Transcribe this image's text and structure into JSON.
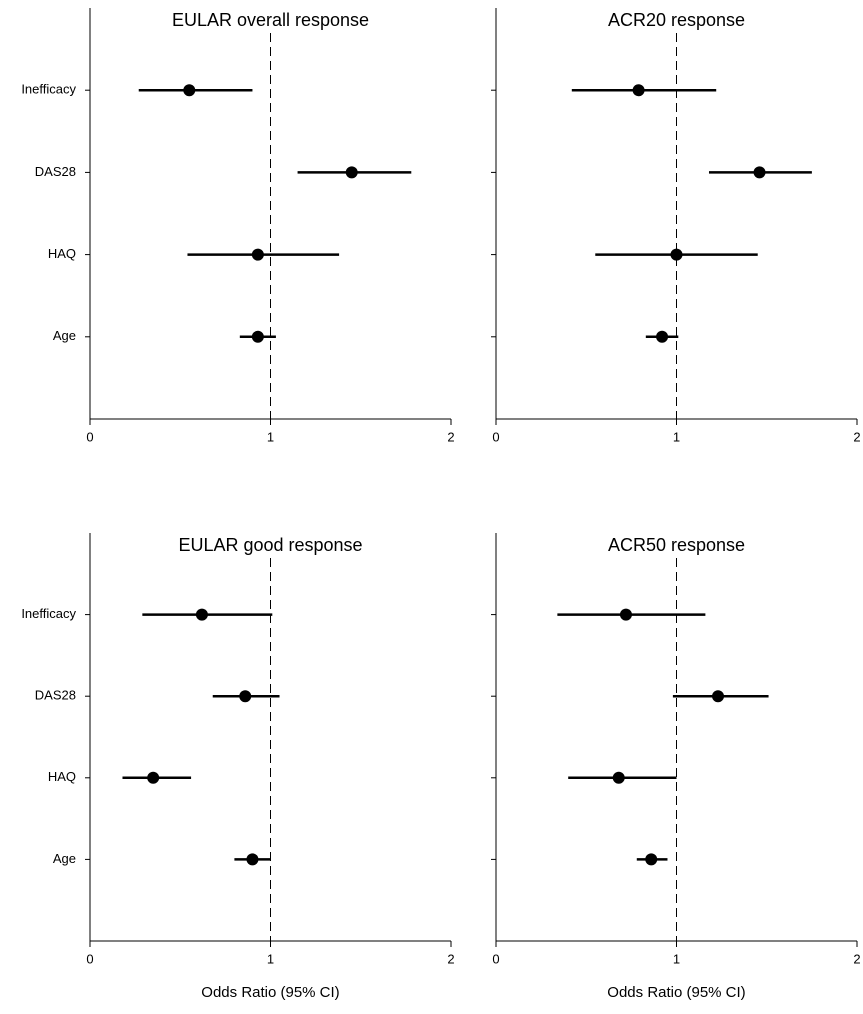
{
  "chart_data": [
    {
      "type": "forest",
      "title": "EULAR overall response",
      "categories": [
        "Inefficacy",
        "DAS28",
        "HAQ",
        "Age"
      ],
      "values": [
        0.55,
        1.45,
        0.93,
        0.93
      ],
      "ci_low": [
        0.27,
        1.15,
        0.54,
        0.83
      ],
      "ci_high": [
        0.9,
        1.78,
        1.38,
        1.03
      ],
      "xlim": [
        0,
        2
      ],
      "xticks": [
        0,
        1,
        2
      ],
      "reference_line": 1,
      "color": "#000000"
    },
    {
      "type": "forest",
      "title": "ACR20 response",
      "categories": [
        "Inefficacy",
        "DAS28",
        "HAQ",
        "Age"
      ],
      "values": [
        0.79,
        1.46,
        1.0,
        0.92
      ],
      "ci_low": [
        0.42,
        1.18,
        0.55,
        0.83
      ],
      "ci_high": [
        1.22,
        1.75,
        1.45,
        1.01
      ],
      "xlim": [
        0,
        2
      ],
      "xticks": [
        0,
        1,
        2
      ],
      "reference_line": 1,
      "color": "#000000"
    },
    {
      "type": "forest",
      "title": "EULAR good response",
      "categories": [
        "Inefficacy",
        "DAS28",
        "HAQ",
        "Age"
      ],
      "values": [
        0.62,
        0.86,
        0.35,
        0.9
      ],
      "ci_low": [
        0.29,
        0.68,
        0.18,
        0.8
      ],
      "ci_high": [
        1.01,
        1.05,
        0.56,
        1.0
      ],
      "xlim": [
        0,
        2
      ],
      "xticks": [
        0,
        1,
        2
      ],
      "reference_line": 1,
      "color": "#000000",
      "x_label": "Odds Ratio (95% CI)"
    },
    {
      "type": "forest",
      "title": "ACR50 response",
      "categories": [
        "Inefficacy",
        "DAS28",
        "HAQ",
        "Age"
      ],
      "values": [
        0.72,
        1.23,
        0.68,
        0.86
      ],
      "ci_low": [
        0.34,
        0.98,
        0.4,
        0.78
      ],
      "ci_high": [
        1.16,
        1.51,
        1.0,
        0.95
      ],
      "xlim": [
        0,
        2
      ],
      "xticks": [
        0,
        1,
        2
      ],
      "reference_line": 1,
      "color": "#000000",
      "x_label": "Odds Ratio (95% CI)"
    }
  ]
}
